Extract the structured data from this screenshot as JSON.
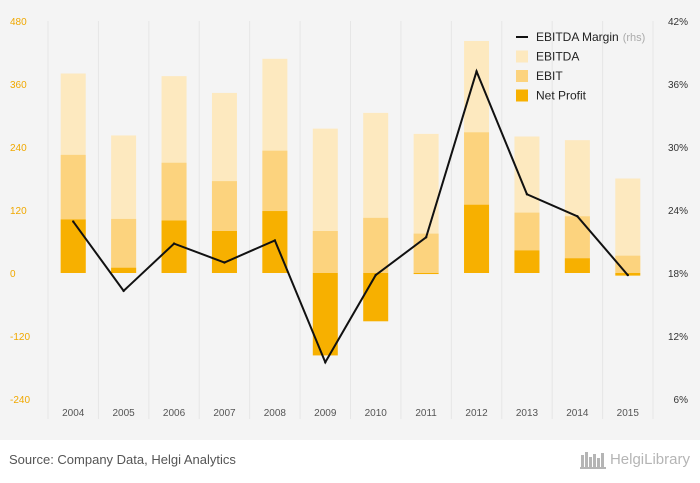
{
  "chart_data": {
    "type": "bar",
    "categories": [
      "2004",
      "2005",
      "2006",
      "2007",
      "2008",
      "2009",
      "2010",
      "2011",
      "2012",
      "2013",
      "2014",
      "2015"
    ],
    "series": [
      {
        "name": "EBITDA",
        "kind": "bar",
        "axis": "left",
        "color": "#fde9bf",
        "values": [
          380,
          262,
          375,
          343,
          408,
          275,
          305,
          265,
          442,
          260,
          253,
          180
        ]
      },
      {
        "name": "EBIT",
        "kind": "bar",
        "axis": "left",
        "color": "#fcd37e",
        "values": [
          225,
          103,
          210,
          175,
          233,
          80,
          105,
          75,
          268,
          115,
          108,
          33
        ]
      },
      {
        "name": "Net Profit",
        "kind": "bar",
        "axis": "left",
        "color": "#f7b000",
        "values": [
          102,
          10,
          100,
          80,
          118,
          -157,
          -92,
          -2,
          130,
          43,
          28,
          -5
        ]
      },
      {
        "name": "EBITDA Margin",
        "kind": "line",
        "axis": "right",
        "color": "#111111",
        "values": [
          22.9,
          16.3,
          20.8,
          19.0,
          21.1,
          9.5,
          17.8,
          21.4,
          37.2,
          25.5,
          23.4,
          17.8
        ]
      }
    ],
    "left_axis": {
      "ylim": [
        -240,
        480
      ],
      "ticks": [
        -240,
        -120,
        0,
        120,
        240,
        360,
        480
      ],
      "tick_labels": [
        "-240",
        "-120",
        "0",
        "120",
        "240",
        "360",
        "480"
      ]
    },
    "right_axis": {
      "ylim": [
        6,
        42
      ],
      "ticks": [
        6,
        12,
        18,
        24,
        30,
        36,
        42
      ],
      "tick_labels": [
        "6%",
        "12%",
        "18%",
        "24%",
        "30%",
        "36%",
        "42%"
      ]
    },
    "legend": {
      "placement": "top-right",
      "items": [
        {
          "label": "EBITDA Margin",
          "note": "(rhs)",
          "symbol": "line",
          "color": "#111111"
        },
        {
          "label": "EBITDA",
          "symbol": "square",
          "color": "#fde9bf"
        },
        {
          "label": "EBIT",
          "symbol": "square",
          "color": "#fcd37e"
        },
        {
          "label": "Net Profit",
          "symbol": "square",
          "color": "#f7b000"
        }
      ]
    },
    "grid": "vertical-separators"
  },
  "footer": {
    "source": "Source: Company Data, Helgi Analytics",
    "brand": "HelgiLibrary"
  }
}
